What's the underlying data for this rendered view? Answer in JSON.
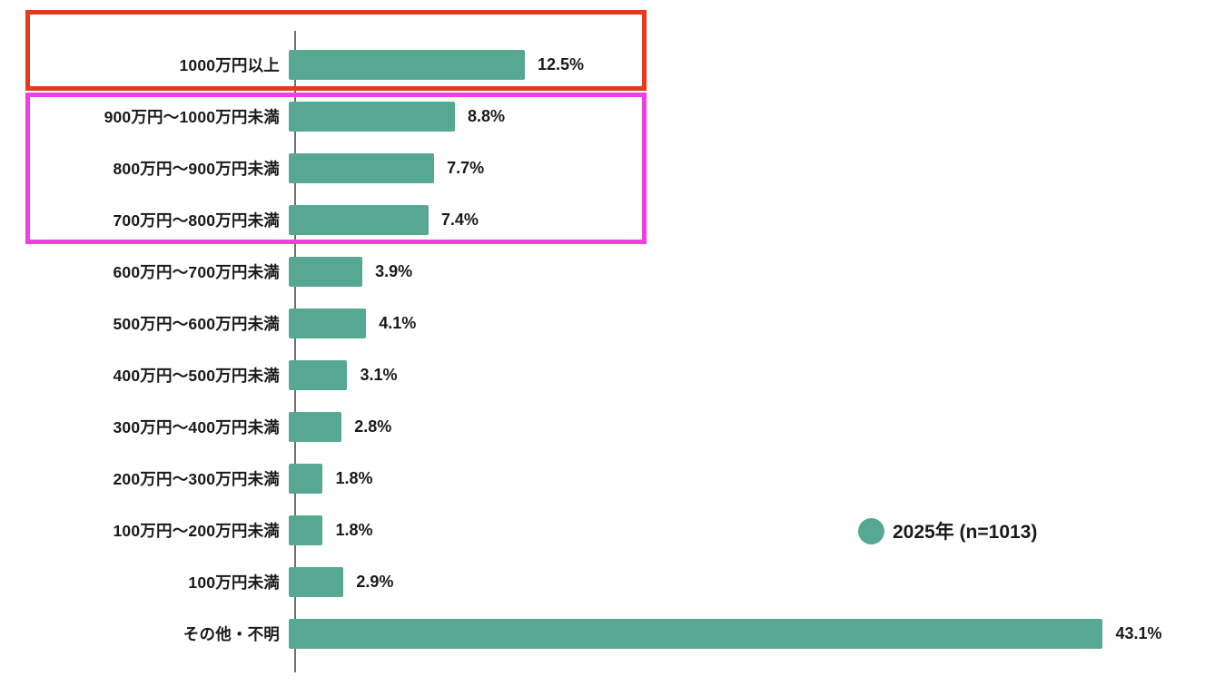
{
  "chart_data": {
    "type": "bar",
    "orientation": "horizontal",
    "title": "",
    "xlabel": "",
    "ylabel": "",
    "xlim": [
      0,
      45
    ],
    "grid": false,
    "bar_color": "#57a893",
    "categories": [
      "1000万円以上",
      "900万円〜1000万円未満",
      "800万円〜900万円未満",
      "700万円〜800万円未満",
      "600万円〜700万円未満",
      "500万円〜600万円未満",
      "400万円〜500万円未満",
      "300万円〜400万円未満",
      "200万円〜300万円未満",
      "100万円〜200万円未満",
      "100万円未満",
      "その他・不明"
    ],
    "values": [
      12.5,
      8.8,
      7.7,
      7.4,
      3.9,
      4.1,
      3.1,
      2.8,
      1.8,
      1.8,
      2.9,
      43.1
    ],
    "value_labels": [
      "12.5%",
      "8.8%",
      "7.7%",
      "7.4%",
      "3.9%",
      "4.1%",
      "3.1%",
      "2.8%",
      "1.8%",
      "1.8%",
      "2.9%",
      "43.1%"
    ],
    "legend": {
      "label": "2025年 (n=1013)",
      "marker_color": "#57a893",
      "position": "right"
    },
    "annotations": [
      {
        "name": "highlight-box-red",
        "rows": [
          "1000万円以上"
        ],
        "color": "#e8391d"
      },
      {
        "name": "highlight-box-magenta",
        "rows": [
          "900万円〜1000万円未満",
          "800万円〜900万円未満",
          "700万円〜800万円未満"
        ],
        "color": "#ee3fe0"
      }
    ]
  }
}
